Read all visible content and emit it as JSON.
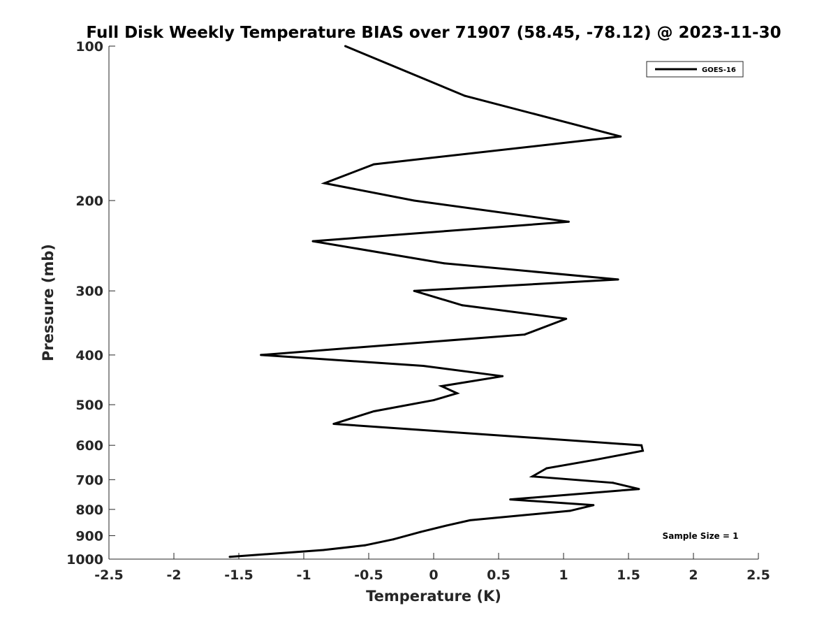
{
  "chart_data": {
    "type": "line",
    "title": "Full Disk Weekly Temperature BIAS over 71907 (58.45, -78.12) @ 2023-11-30",
    "xlabel": "Temperature (K)",
    "ylabel": "Pressure (mb)",
    "xlim": [
      -2.5,
      2.5
    ],
    "ylim": [
      100,
      1000
    ],
    "yscale": "log",
    "yreversed": true,
    "xticks": [
      -2.5,
      -2,
      -1.5,
      -1,
      -0.5,
      0,
      0.5,
      1,
      1.5,
      2,
      2.5
    ],
    "xtick_labels": [
      "-2.5",
      "-2",
      "-1.5",
      "-1",
      "-0.5",
      "0",
      "0.5",
      "1",
      "1.5",
      "2",
      "2.5"
    ],
    "yticks": [
      100,
      200,
      300,
      400,
      500,
      600,
      700,
      800,
      900,
      1000
    ],
    "ytick_labels": [
      "100",
      "200",
      "300",
      "400",
      "500",
      "600",
      "700",
      "800",
      "900",
      "1000"
    ],
    "grid": false,
    "legend_position": "top-right",
    "annotation": "Sample Size = 1",
    "line_color": "#000000",
    "series": [
      {
        "name": "GOES-16",
        "x": [
          -0.68,
          0.24,
          1.44,
          -0.46,
          -0.84,
          -0.15,
          1.04,
          -0.93,
          0.08,
          1.42,
          -0.15,
          0.22,
          1.02,
          0.7,
          -1.33,
          -0.08,
          0.53,
          0.06,
          0.18,
          0.0,
          -0.46,
          -0.77,
          1.6,
          1.61,
          1.25,
          0.87,
          0.76,
          1.38,
          1.58,
          0.59,
          1.23,
          1.05,
          0.28,
          0.1,
          -0.1,
          -0.31,
          -0.53,
          -0.85,
          -1.57
        ],
        "y": [
          100,
          125,
          150,
          170,
          185,
          200,
          220,
          240,
          265,
          285,
          300,
          320,
          340,
          365,
          400,
          420,
          440,
          460,
          475,
          490,
          515,
          545,
          600,
          615,
          640,
          665,
          690,
          710,
          730,
          765,
          785,
          805,
          840,
          860,
          885,
          915,
          940,
          960,
          990
        ]
      }
    ]
  }
}
